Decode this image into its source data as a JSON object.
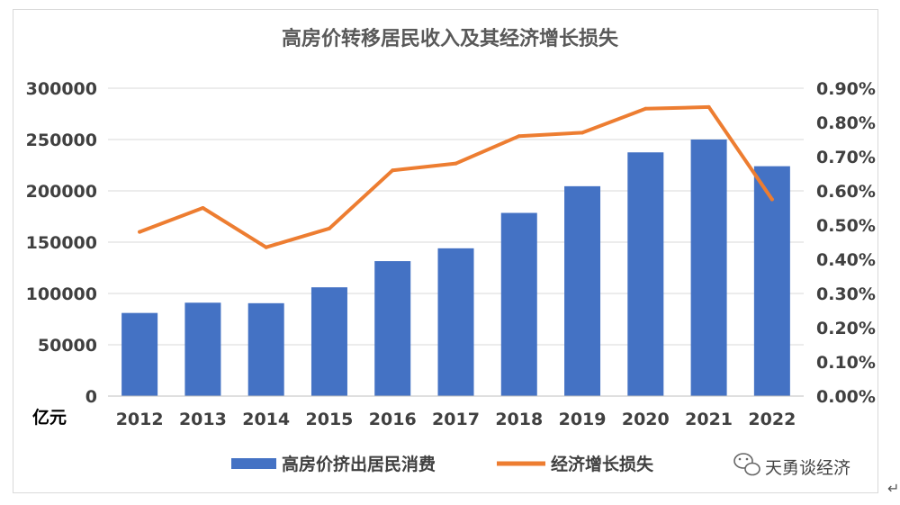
{
  "chart_data": {
    "type": "bar+line",
    "title": "高房价转移居民收入及其经济增长损失",
    "categories": [
      "2012",
      "2013",
      "2014",
      "2015",
      "2016",
      "2017",
      "2018",
      "2019",
      "2020",
      "2021",
      "2022"
    ],
    "series": [
      {
        "name": "高房价挤出居民消费",
        "type": "bar",
        "axis": "left",
        "color": "#4472C4",
        "values": [
          81000,
          91000,
          90500,
          106000,
          131500,
          144000,
          178500,
          204500,
          237500,
          250000,
          224000
        ]
      },
      {
        "name": "经济增长损失",
        "type": "line",
        "axis": "right",
        "color": "#ED7D31",
        "values": [
          0.48,
          0.55,
          0.435,
          0.49,
          0.66,
          0.68,
          0.76,
          0.77,
          0.84,
          0.845,
          0.575
        ]
      }
    ],
    "left_axis": {
      "unit_label": "亿元",
      "ylim": [
        0,
        300000
      ],
      "ticks": [
        "0",
        "50000",
        "100000",
        "150000",
        "200000",
        "250000",
        "300000"
      ]
    },
    "right_axis": {
      "ylim": [
        0,
        0.9
      ],
      "ticks": [
        "0.00%",
        "0.10%",
        "0.20%",
        "0.30%",
        "0.40%",
        "0.50%",
        "0.60%",
        "0.70%",
        "0.80%",
        "0.90%"
      ]
    },
    "grid": true,
    "legend_position": "bottom"
  },
  "watermark": {
    "icon": "wechat-icon",
    "text": "天勇谈经济"
  }
}
